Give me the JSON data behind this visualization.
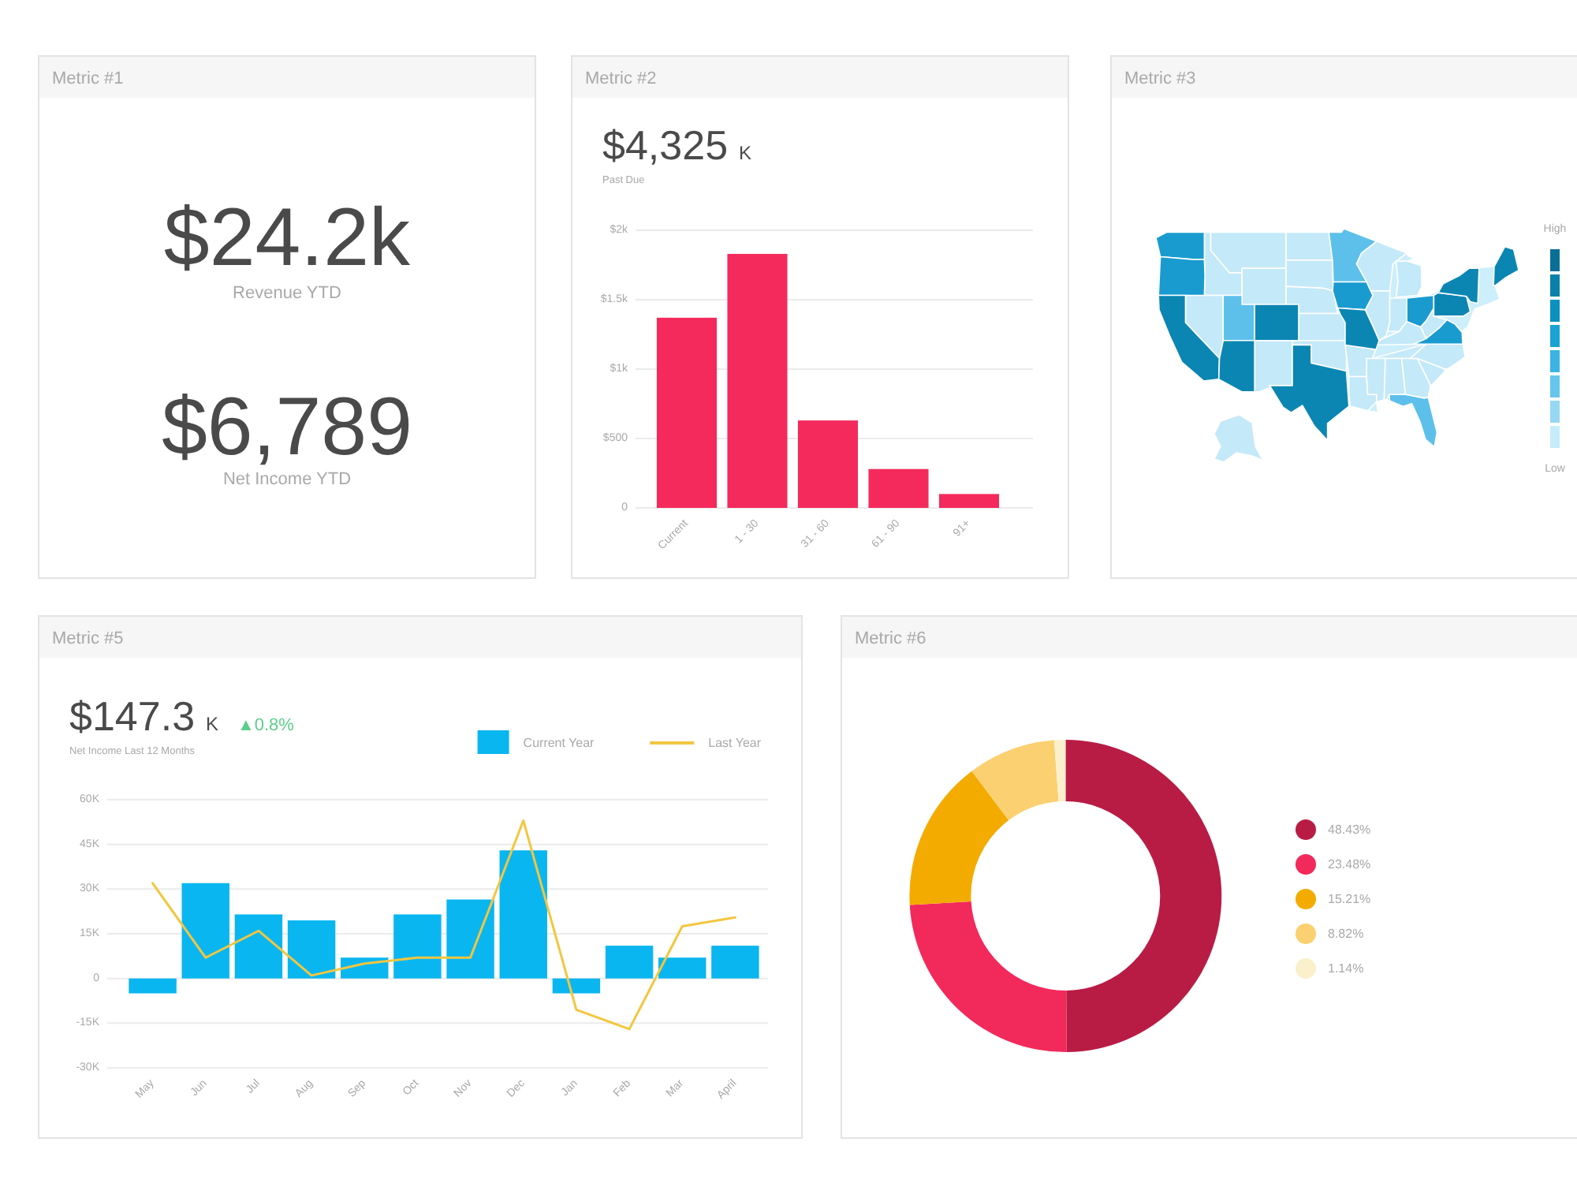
{
  "chart_data": [
    {
      "type": "other",
      "title": "Metric #1",
      "annotations": [
        "$24.2k",
        "Revenue YTD",
        "$6,789",
        "Net Income YTD"
      ]
    },
    {
      "type": "bar",
      "title": "Metric #2",
      "annotations": [
        "$4,325",
        "K",
        "Past Due"
      ],
      "categories": [
        "Current",
        "1 - 30",
        "31 - 60",
        "61 - 90",
        "91+"
      ],
      "values": [
        1370,
        1830,
        630,
        280,
        100
      ],
      "color": "#f42a5c",
      "ylim": [
        0,
        2000
      ],
      "yticks": [
        0,
        {
          "value": 500,
          "label": "$500"
        },
        {
          "value": 1000,
          "label": "$1k"
        },
        {
          "value": 1500,
          "label": "$1.5k"
        },
        {
          "value": 2000,
          "label": "$2k"
        }
      ],
      "grid": "y"
    },
    {
      "type": "other",
      "title": "Metric #3",
      "annotations": [
        "High",
        "Low"
      ]
    },
    {
      "type": "bar",
      "title": "Metric #5",
      "annotations": [
        "$147.3",
        "K",
        "▲0.8%",
        "Net Income Last 12 Months"
      ],
      "categories": [
        "May",
        "Jun",
        "Jul",
        "Aug",
        "Sep",
        "Oct",
        "Nov",
        "Dec",
        "Jan",
        "Feb",
        "Mar",
        "April"
      ],
      "series": [
        {
          "name": "Current Year",
          "color": "#0ab6f0",
          "values": [
            -5000,
            32000,
            21500,
            19500,
            7000,
            21500,
            26500,
            43000,
            -5000,
            11000,
            7000,
            11000
          ]
        },
        {
          "name": "Last Year",
          "type": "line",
          "color": "#f3c63f",
          "values": [
            32000,
            7000,
            16000,
            1000,
            5000,
            7000,
            7000,
            53000,
            -10500,
            -17000,
            17500,
            20500
          ]
        }
      ],
      "ylim": [
        -30000,
        60000
      ],
      "yticks": [
        {
          "value": -30000,
          "label": "-30K"
        },
        {
          "value": -15000,
          "label": "-15K"
        },
        0,
        {
          "value": 15000,
          "label": "15K"
        },
        {
          "value": 30000,
          "label": "30K"
        },
        {
          "value": 45000,
          "label": "45K"
        },
        {
          "value": 60000,
          "label": "60K"
        }
      ],
      "grid": "y",
      "legend": "top right"
    },
    {
      "type": "donut",
      "title": "Metric #6",
      "categories": [
        "48.43%",
        "23.48%",
        "15.21%",
        "8.82%",
        "1.14%"
      ],
      "values": [
        48.43,
        23.48,
        15.21,
        8.82,
        1.14
      ],
      "colors": [
        "#b81c45",
        "#f2295b",
        "#f4ab00",
        "#fad070",
        "#fbf0cc"
      ],
      "legend": "right"
    }
  ]
}
